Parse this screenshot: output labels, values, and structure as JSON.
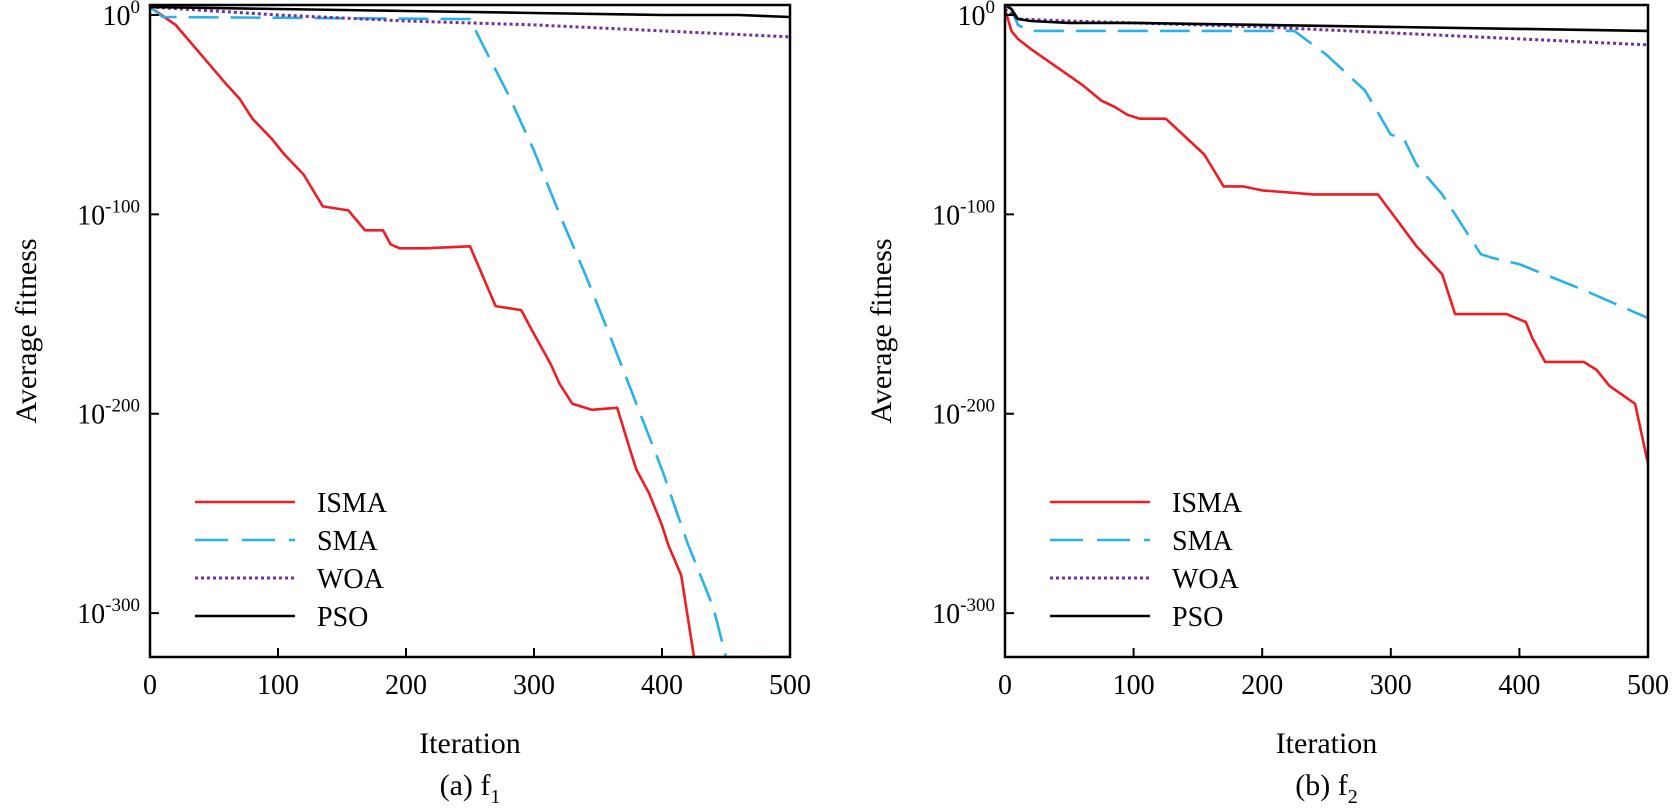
{
  "figure": {
    "y_tick_base": "10",
    "y_tick_exponents": [
      "0",
      "-100",
      "-200",
      "-300"
    ],
    "y_tick_values": [
      0,
      -100,
      -200,
      -300
    ]
  },
  "colors": {
    "ISMA": "#ee1c24",
    "SMA": "#29b2e8",
    "WOA": "#7030a0",
    "PSO": "#000000"
  },
  "chart_data": [
    {
      "type": "line",
      "caption_prefix": "(a) f",
      "caption_sub": "1",
      "xlabel": "Iteration",
      "ylabel": "Average fitness",
      "x_ticks": [
        "0",
        "100",
        "200",
        "300",
        "400",
        "500"
      ],
      "xlim": [
        0,
        500
      ],
      "ylim_log10": [
        -322,
        5
      ],
      "legend_position": "lower-left",
      "series": [
        {
          "name": "ISMA",
          "style": "solid",
          "x": [
            0,
            20,
            40,
            60,
            70,
            80,
            95,
            105,
            120,
            135,
            155,
            168,
            182,
            188,
            195,
            215,
            250,
            270,
            290,
            300,
            313,
            320,
            330,
            345,
            365,
            375,
            380,
            390,
            400,
            405,
            415,
            425,
            440,
            480,
            500
          ],
          "y": [
            4,
            -5,
            -20,
            -35,
            -42,
            -52,
            -62,
            -70,
            -80,
            -96,
            -98,
            -108,
            -108,
            -115,
            -117,
            -117,
            -116,
            -146,
            -148,
            -160,
            -175,
            -185,
            -195,
            -198,
            -197,
            -218,
            -228,
            -240,
            -256,
            -266,
            -281,
            -322,
            -322,
            -322,
            -322
          ]
        },
        {
          "name": "SMA",
          "style": "dashed",
          "x": [
            0,
            10,
            240,
            250,
            260,
            280,
            300,
            320,
            340,
            360,
            380,
            400,
            420,
            440,
            450,
            480,
            500
          ],
          "y": [
            4,
            -1,
            -2,
            -2,
            -15,
            -40,
            -68,
            -100,
            -130,
            -162,
            -195,
            -228,
            -265,
            -297,
            -322,
            -322,
            -322
          ]
        },
        {
          "name": "WOA",
          "style": "dotted",
          "x": [
            0,
            50,
            100,
            200,
            300,
            400,
            500
          ],
          "y": [
            4,
            2,
            0,
            -3,
            -5,
            -8,
            -11
          ]
        },
        {
          "name": "PSO",
          "style": "solid",
          "x": [
            0,
            100,
            200,
            300,
            400,
            460,
            500
          ],
          "y": [
            4,
            3,
            2,
            1,
            0,
            0,
            -1
          ]
        }
      ]
    },
    {
      "type": "line",
      "caption_prefix": "(b) f",
      "caption_sub": "2",
      "xlabel": "Iteration",
      "ylabel": "Average fitness",
      "x_ticks": [
        "0",
        "100",
        "200",
        "300",
        "400",
        "500"
      ],
      "xlim": [
        0,
        500
      ],
      "ylim_log10": [
        -322,
        5
      ],
      "legend_position": "lower-left",
      "series": [
        {
          "name": "ISMA",
          "style": "solid",
          "x": [
            0,
            5,
            10,
            20,
            40,
            60,
            75,
            85,
            95,
            105,
            125,
            135,
            155,
            170,
            185,
            200,
            240,
            290,
            305,
            320,
            340,
            350,
            370,
            390,
            405,
            410,
            420,
            450,
            460,
            470,
            490,
            500
          ],
          "y": [
            3,
            -8,
            -12,
            -17,
            -26,
            -35,
            -43,
            -46,
            -50,
            -52,
            -52,
            -58,
            -70,
            -86,
            -86,
            -88,
            -90,
            -90,
            -103,
            -116,
            -130,
            -150,
            -150,
            -150,
            -154,
            -162,
            -174,
            -174,
            -178,
            -186,
            -195,
            -225
          ]
        },
        {
          "name": "SMA",
          "style": "dashed",
          "x": [
            0,
            5,
            10,
            20,
            50,
            100,
            150,
            200,
            225,
            250,
            280,
            300,
            310,
            320,
            340,
            355,
            360,
            370,
            380,
            400,
            450,
            500
          ],
          "y": [
            5,
            3,
            -5,
            -8,
            -8,
            -8,
            -8,
            -8,
            -8,
            -20,
            -38,
            -60,
            -62,
            -75,
            -90,
            -105,
            -110,
            -120,
            -122,
            -125,
            -138,
            -152
          ]
        },
        {
          "name": "WOA",
          "style": "dotted",
          "x": [
            0,
            10,
            50,
            100,
            200,
            300,
            400,
            500
          ],
          "y": [
            3,
            -2,
            -3,
            -4,
            -6,
            -9,
            -12,
            -15
          ]
        },
        {
          "name": "PSO",
          "style": "solid",
          "x": [
            0,
            5,
            10,
            20,
            50,
            100,
            200,
            300,
            400,
            500
          ],
          "y": [
            5,
            3,
            -2,
            -3,
            -4,
            -4,
            -5,
            -6,
            -7,
            -8
          ]
        }
      ]
    }
  ]
}
